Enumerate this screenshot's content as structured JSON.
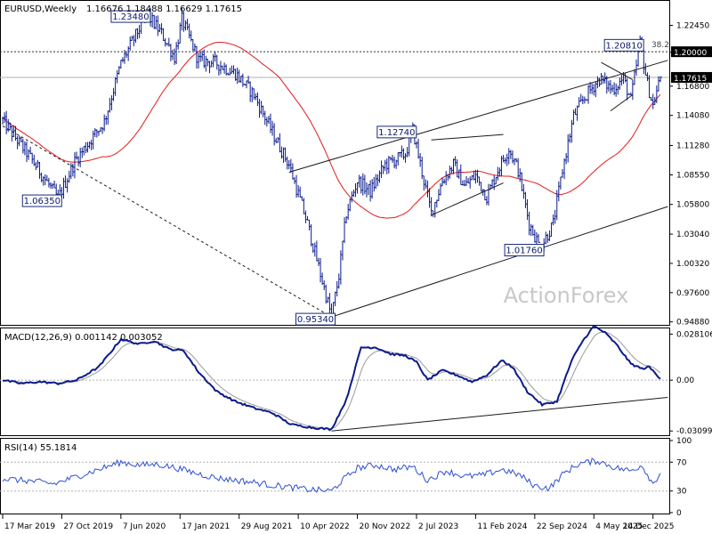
{
  "watermark": "ActionForex",
  "colors": {
    "bar": "#0a1a8c",
    "ma": "#e21a1a",
    "macd_line": "#0a1a8c",
    "signal_line": "#9a9a9a",
    "rsi_line": "#2f4fd0",
    "trendline": "#1a1a1a",
    "label_border": "#1a2a7a",
    "current_label_bg": "#000000",
    "current_label_fg": "#ffffff",
    "grid_dash": "#b0b0b0",
    "background": "#ffffff"
  },
  "chart_data": [
    {
      "type": "ohlc",
      "title": "EURUSD,Weekly",
      "ohlc_header": "1.16676 1.18488 1.16629 1.17615",
      "ylim": [
        0.9477,
        1.2448
      ],
      "y_ticks": [
        "1.22450",
        "1.19950",
        "1.16800",
        "1.14080",
        "1.11280",
        "1.08550",
        "1.05800",
        "1.03040",
        "1.00320",
        "0.97600",
        "0.94880"
      ],
      "x_ticks": [
        "17 Mar 2019",
        "27 Oct 2019",
        "7 Jun 2020",
        "17 Jan 2021",
        "29 Aug 2021",
        "10 Apr 2022",
        "20 Nov 2022",
        "2 Jul 2023",
        "11 Feb 2024",
        "22 Sep 2024",
        "4 May 2025",
        "14 Dec 2025"
      ],
      "x_tick_weeks": [
        0,
        32,
        64,
        96,
        128,
        160,
        192,
        224,
        256,
        288,
        320,
        352
      ],
      "waypoints": [
        [
          0,
          1.136
        ],
        [
          16,
          1.099
        ],
        [
          30,
          1.0635
        ],
        [
          39,
          1.098
        ],
        [
          55,
          1.135
        ],
        [
          64,
          1.189
        ],
        [
          78,
          1.2348
        ],
        [
          86,
          1.217
        ],
        [
          93,
          1.195
        ],
        [
          97,
          1.23
        ],
        [
          106,
          1.192
        ],
        [
          115,
          1.19
        ],
        [
          126,
          1.18
        ],
        [
          136,
          1.16
        ],
        [
          146,
          1.125
        ],
        [
          155,
          1.095
        ],
        [
          165,
          1.04
        ],
        [
          171,
          1.0
        ],
        [
          178,
          0.9534
        ],
        [
          182,
          0.992
        ],
        [
          186,
          1.05
        ],
        [
          192,
          1.08
        ],
        [
          199,
          1.07
        ],
        [
          207,
          1.095
        ],
        [
          213,
          1.1
        ],
        [
          218,
          1.105
        ],
        [
          222,
          1.1274
        ],
        [
          228,
          1.08
        ],
        [
          232,
          1.05
        ],
        [
          238,
          1.08
        ],
        [
          244,
          1.095
        ],
        [
          250,
          1.075
        ],
        [
          256,
          1.085
        ],
        [
          262,
          1.065
        ],
        [
          268,
          1.09
        ],
        [
          274,
          1.11
        ],
        [
          279,
          1.09
        ],
        [
          285,
          1.04
        ],
        [
          291,
          1.0176
        ],
        [
          298,
          1.04
        ],
        [
          303,
          1.09
        ],
        [
          309,
          1.14
        ],
        [
          316,
          1.16
        ],
        [
          323,
          1.175
        ],
        [
          330,
          1.165
        ],
        [
          336,
          1.175
        ],
        [
          340,
          1.155
        ],
        [
          345,
          1.2081
        ],
        [
          349,
          1.17
        ],
        [
          352,
          1.15
        ],
        [
          356,
          1.1762
        ]
      ],
      "moving_average": {
        "period": 55
      },
      "current_price": {
        "value": 1.17615,
        "label": "1.17615"
      },
      "horizontal_level": {
        "value": 1.2,
        "label": "1.20000"
      },
      "fib_label": "38.2",
      "annotations": [
        {
          "label": "1.23480",
          "week": 78,
          "value": 1.2348
        },
        {
          "label": "1.06350",
          "week": 30,
          "value": 1.0635
        },
        {
          "label": "1.12740",
          "week": 222,
          "value": 1.1274
        },
        {
          "label": "0.95340",
          "week": 178,
          "value": 0.9534
        },
        {
          "label": "1.01760",
          "week": 291,
          "value": 1.0176
        },
        {
          "label": "1.20810",
          "week": 345,
          "value": 1.2081
        }
      ],
      "trendlines": [
        {
          "from": [
            0,
            1.131
          ],
          "to": [
            178,
            0.9534
          ],
          "style": "dashed"
        },
        {
          "from": [
            178,
            0.9534
          ],
          "to": [
            360,
            1.056
          ],
          "style": "solid"
        },
        {
          "from": [
            155,
            1.088
          ],
          "to": [
            360,
            1.192
          ],
          "style": "solid"
        },
        {
          "from": [
            232,
            1.118
          ],
          "to": [
            271,
            1.123
          ],
          "style": "solid"
        },
        {
          "from": [
            232,
            1.048
          ],
          "to": [
            271,
            1.078
          ],
          "style": "solid"
        },
        {
          "from": [
            324,
            1.19
          ],
          "to": [
            341,
            1.174
          ],
          "style": "solid"
        },
        {
          "from": [
            329,
            1.145
          ],
          "to": [
            341,
            1.16
          ],
          "style": "solid"
        }
      ]
    },
    {
      "type": "line",
      "title": "MACD(12,26,9) 0.001142 0.003052",
      "ylim": [
        -0.0325,
        0.0305
      ],
      "y_ticks": [
        "0.028106",
        "0.00",
        "-0.03099"
      ],
      "current_labels": [
        {
          "label": "0.00",
          "value": 0.0
        }
      ],
      "zero_line": true,
      "macd_waypoints": [
        [
          0,
          0.0
        ],
        [
          10,
          -0.002
        ],
        [
          20,
          -0.001
        ],
        [
          30,
          -0.002
        ],
        [
          40,
          0.0
        ],
        [
          52,
          0.008
        ],
        [
          64,
          0.025
        ],
        [
          74,
          0.022
        ],
        [
          82,
          0.024
        ],
        [
          90,
          0.019
        ],
        [
          98,
          0.018
        ],
        [
          106,
          0.005
        ],
        [
          116,
          -0.007
        ],
        [
          126,
          -0.013
        ],
        [
          136,
          -0.017
        ],
        [
          146,
          -0.02
        ],
        [
          156,
          -0.027
        ],
        [
          168,
          -0.029
        ],
        [
          178,
          -0.03
        ],
        [
          186,
          -0.012
        ],
        [
          194,
          0.02
        ],
        [
          202,
          0.02
        ],
        [
          210,
          0.016
        ],
        [
          218,
          0.015
        ],
        [
          224,
          0.011
        ],
        [
          230,
          0.0
        ],
        [
          238,
          0.006
        ],
        [
          246,
          0.003
        ],
        [
          254,
          -0.001
        ],
        [
          262,
          0.003
        ],
        [
          270,
          0.012
        ],
        [
          276,
          0.008
        ],
        [
          284,
          -0.007
        ],
        [
          292,
          -0.015
        ],
        [
          300,
          -0.013
        ],
        [
          308,
          0.012
        ],
        [
          314,
          0.024
        ],
        [
          320,
          0.033
        ],
        [
          326,
          0.029
        ],
        [
          332,
          0.022
        ],
        [
          340,
          0.01
        ],
        [
          346,
          0.007
        ],
        [
          350,
          0.008
        ],
        [
          356,
          0.001
        ]
      ],
      "support_line": {
        "from": [
          178,
          -0.031
        ],
        "to": [
          360,
          -0.0105
        ]
      }
    },
    {
      "type": "line",
      "title": "RSI(14) 55.1814",
      "ylim": [
        0,
        100
      ],
      "y_ticks": [
        "100",
        "70",
        "30",
        "0"
      ],
      "levels": [
        70,
        30
      ],
      "rsi_waypoints": [
        [
          0,
          47
        ],
        [
          14,
          44
        ],
        [
          28,
          40
        ],
        [
          40,
          50
        ],
        [
          52,
          60
        ],
        [
          64,
          70
        ],
        [
          74,
          66
        ],
        [
          84,
          67
        ],
        [
          94,
          62
        ],
        [
          104,
          55
        ],
        [
          116,
          48
        ],
        [
          126,
          45
        ],
        [
          136,
          42
        ],
        [
          146,
          38
        ],
        [
          156,
          35
        ],
        [
          166,
          32
        ],
        [
          178,
          30
        ],
        [
          184,
          45
        ],
        [
          192,
          62
        ],
        [
          202,
          66
        ],
        [
          212,
          60
        ],
        [
          222,
          64
        ],
        [
          230,
          45
        ],
        [
          240,
          58
        ],
        [
          250,
          50
        ],
        [
          260,
          52
        ],
        [
          270,
          60
        ],
        [
          280,
          52
        ],
        [
          288,
          37
        ],
        [
          296,
          34
        ],
        [
          304,
          55
        ],
        [
          312,
          68
        ],
        [
          322,
          72
        ],
        [
          332,
          62
        ],
        [
          340,
          58
        ],
        [
          346,
          66
        ],
        [
          352,
          40
        ],
        [
          356,
          55
        ]
      ]
    }
  ]
}
